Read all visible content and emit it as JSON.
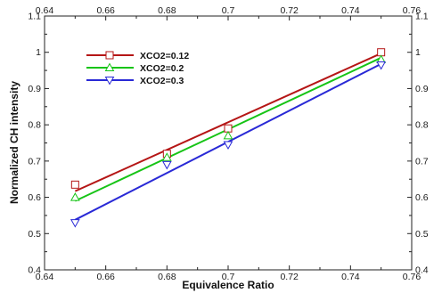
{
  "chart_data": {
    "type": "scatter",
    "title": "",
    "xlabel": "Equivalence Ratio",
    "ylabel": "Normalized CH intensity",
    "xlim": [
      0.64,
      0.76
    ],
    "ylim": [
      0.4,
      1.1
    ],
    "x_ticks": [
      "0.64",
      "0.66",
      "0.68",
      "0.7",
      "0.72",
      "0.74",
      "0.76"
    ],
    "y_ticks": [
      "0.4",
      "0.5",
      "0.6",
      "0.7",
      "0.8",
      "0.9",
      "1",
      "1.1"
    ],
    "x_tick_values": [
      0.64,
      0.66,
      0.68,
      0.7,
      0.72,
      0.74,
      0.76
    ],
    "y_tick_values": [
      0.4,
      0.5,
      0.6,
      0.7,
      0.8,
      0.9,
      1.0,
      1.1
    ],
    "mirror_ticks": true,
    "grid": false,
    "legend_position": "top-left",
    "series": [
      {
        "name": "XCO2=0.12",
        "color": "#b51616",
        "marker": "square",
        "x": [
          0.65,
          0.68,
          0.7,
          0.75
        ],
        "y": [
          0.635,
          0.72,
          0.79,
          1.0
        ],
        "fit": {
          "x": [
            0.65,
            0.75
          ],
          "y": [
            0.617,
            0.997
          ]
        }
      },
      {
        "name": "XCO2=0.2",
        "color": "#16c416",
        "marker": "triangle-up",
        "x": [
          0.65,
          0.68,
          0.7,
          0.75
        ],
        "y": [
          0.6,
          0.71,
          0.77,
          0.98
        ],
        "fit": {
          "x": [
            0.65,
            0.75
          ],
          "y": [
            0.59,
            0.985
          ]
        }
      },
      {
        "name": "XCO2=0.3",
        "color": "#2929d6",
        "marker": "triangle-down",
        "x": [
          0.65,
          0.68,
          0.7,
          0.75
        ],
        "y": [
          0.53,
          0.69,
          0.745,
          0.965
        ],
        "fit": {
          "x": [
            0.65,
            0.75
          ],
          "y": [
            0.538,
            0.968
          ]
        }
      }
    ]
  }
}
